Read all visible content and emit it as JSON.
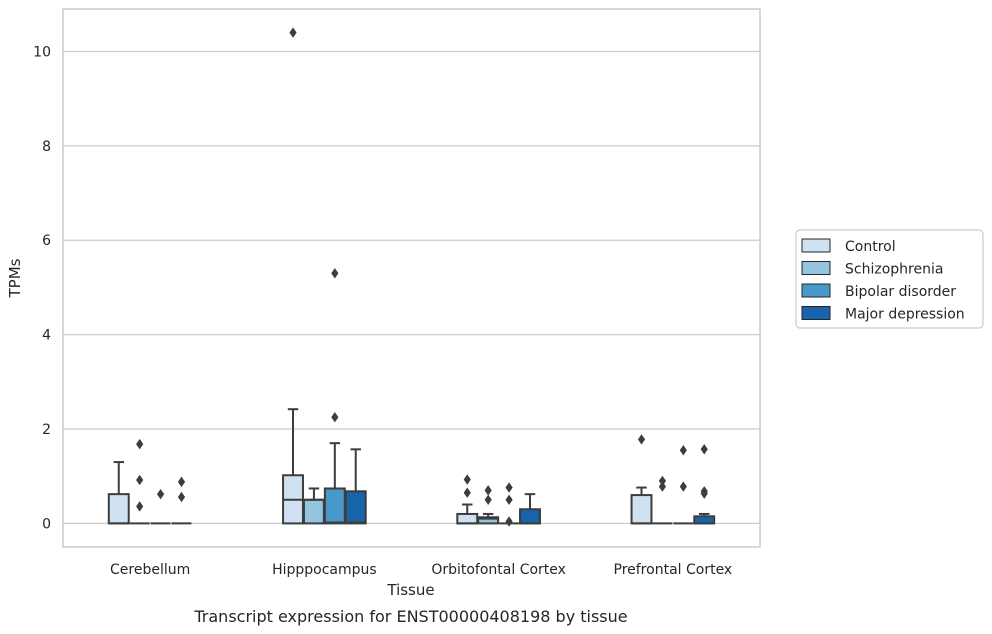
{
  "chart_data": {
    "type": "box",
    "xlabel": "Tissue",
    "ylabel": "TPMs",
    "caption": "Transcript expression for ENST00000408198 by tissue",
    "ylim": [
      -0.5,
      10.9
    ],
    "yticks": [
      0,
      2,
      4,
      6,
      8,
      10
    ],
    "grid": "horizontal",
    "legend_position": "right",
    "categories": [
      "Cerebellum",
      "Hipppocampus",
      "Orbitofontal Cortex",
      "Prefrontal Cortex"
    ],
    "series": [
      {
        "name": "Control",
        "color": "#d0e1f2",
        "boxes": [
          {
            "q1": 0.0,
            "median": 0.0,
            "q3": 0.62,
            "whisker_low": 0.0,
            "whisker_high": 1.3,
            "outliers": []
          },
          {
            "q1": 0.0,
            "median": 0.5,
            "q3": 1.02,
            "whisker_low": 0.0,
            "whisker_high": 2.42,
            "outliers": [
              10.4
            ]
          },
          {
            "q1": 0.0,
            "median": 0.0,
            "q3": 0.2,
            "whisker_low": 0.0,
            "whisker_high": 0.4,
            "outliers": [
              0.65,
              0.93
            ]
          },
          {
            "q1": 0.0,
            "median": 0.0,
            "q3": 0.6,
            "whisker_low": 0.0,
            "whisker_high": 0.76,
            "outliers": [
              1.78
            ]
          }
        ]
      },
      {
        "name": "Schizophrenia",
        "color": "#94c4df",
        "boxes": [
          {
            "q1": 0.0,
            "median": 0.0,
            "q3": 0.0,
            "whisker_low": 0.0,
            "whisker_high": 0.0,
            "outliers": [
              0.36,
              0.92,
              1.68
            ]
          },
          {
            "q1": 0.0,
            "median": 0.5,
            "q3": 0.5,
            "whisker_low": 0.0,
            "whisker_high": 0.74,
            "outliers": []
          },
          {
            "q1": 0.0,
            "median": 0.1,
            "q3": 0.13,
            "whisker_low": 0.0,
            "whisker_high": 0.2,
            "outliers": [
              0.5,
              0.7
            ]
          },
          {
            "q1": 0.0,
            "median": 0.0,
            "q3": 0.0,
            "whisker_low": 0.0,
            "whisker_high": 0.0,
            "outliers": [
              0.78,
              0.9
            ]
          }
        ]
      },
      {
        "name": "Bipolar disorder",
        "color": "#4a98c9",
        "boxes": [
          {
            "q1": 0.0,
            "median": 0.0,
            "q3": 0.0,
            "whisker_low": 0.0,
            "whisker_high": 0.0,
            "outliers": [
              0.62
            ]
          },
          {
            "q1": 0.0,
            "median": 0.02,
            "q3": 0.74,
            "whisker_low": 0.0,
            "whisker_high": 1.7,
            "outliers": [
              2.25,
              5.3
            ]
          },
          {
            "q1": 0.0,
            "median": 0.0,
            "q3": 0.0,
            "whisker_low": 0.0,
            "whisker_high": 0.0,
            "outliers": [
              0.04,
              0.5,
              0.76
            ]
          },
          {
            "q1": 0.0,
            "median": 0.0,
            "q3": 0.0,
            "whisker_low": 0.0,
            "whisker_high": 0.0,
            "outliers": [
              0.78,
              1.55
            ]
          }
        ]
      },
      {
        "name": "Major depression",
        "color": "#1764ab",
        "boxes": [
          {
            "q1": 0.0,
            "median": 0.0,
            "q3": 0.0,
            "whisker_low": 0.0,
            "whisker_high": 0.0,
            "outliers": [
              0.56,
              0.88
            ]
          },
          {
            "q1": 0.0,
            "median": 0.02,
            "q3": 0.68,
            "whisker_low": 0.0,
            "whisker_high": 1.57,
            "outliers": []
          },
          {
            "q1": 0.0,
            "median": 0.0,
            "q3": 0.3,
            "whisker_low": 0.0,
            "whisker_high": 0.62,
            "outliers": []
          },
          {
            "q1": 0.0,
            "median": 0.0,
            "q3": 0.15,
            "whisker_low": 0.0,
            "whisker_high": 0.2,
            "outliers": [
              0.63,
              0.68,
              1.57
            ]
          }
        ]
      }
    ]
  }
}
